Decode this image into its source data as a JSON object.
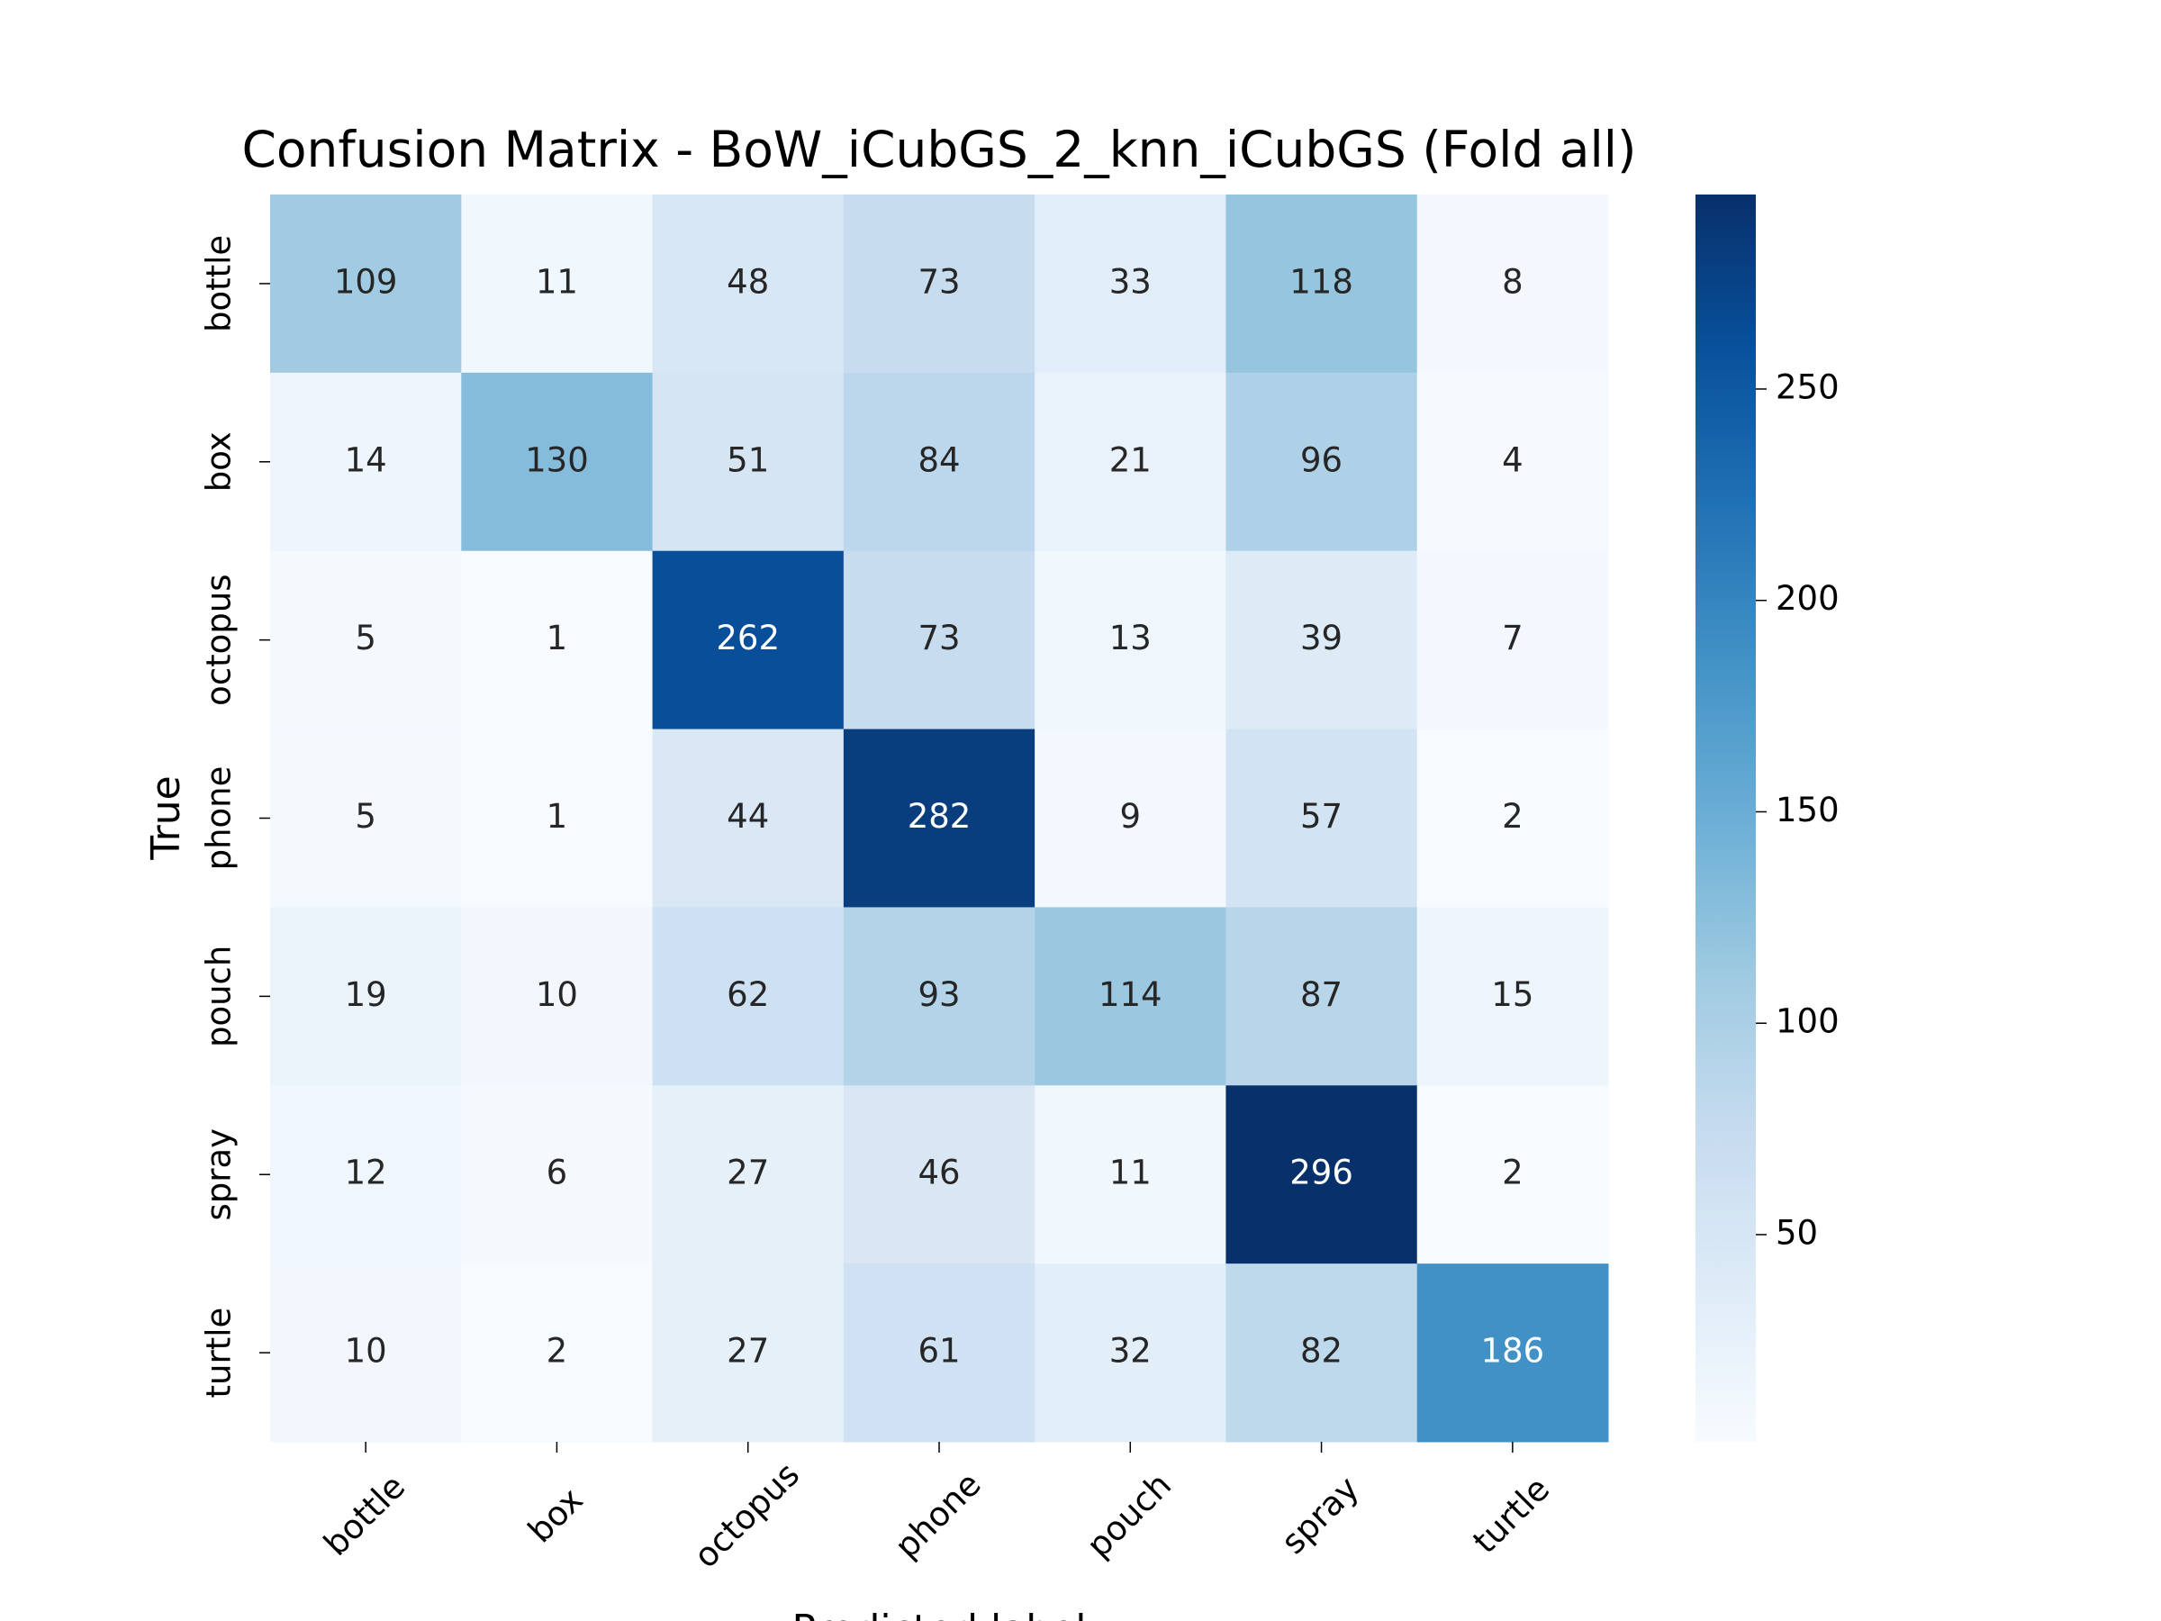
{
  "chart_data": {
    "type": "heatmap",
    "title": "Confusion Matrix - BoW_iCubGS_2_knn_iCubGS (Fold all)",
    "x_label": "Predicted label",
    "y_label": "True",
    "x_categories": [
      "bottle",
      "box",
      "octopus",
      "phone",
      "pouch",
      "spray",
      "turtle"
    ],
    "y_categories": [
      "bottle",
      "box",
      "octopus",
      "phone",
      "pouch",
      "spray",
      "turtle"
    ],
    "z": [
      [
        109,
        11,
        48,
        73,
        33,
        118,
        8
      ],
      [
        14,
        130,
        51,
        84,
        21,
        96,
        4
      ],
      [
        5,
        1,
        262,
        73,
        13,
        39,
        7
      ],
      [
        5,
        1,
        44,
        282,
        9,
        57,
        2
      ],
      [
        19,
        10,
        62,
        93,
        114,
        87,
        15
      ],
      [
        12,
        6,
        27,
        46,
        11,
        296,
        2
      ],
      [
        10,
        2,
        27,
        61,
        32,
        82,
        186
      ]
    ],
    "colormap": "Blues",
    "zlim": [
      1,
      296
    ],
    "zticks": [
      50,
      100,
      150,
      200,
      250
    ]
  }
}
